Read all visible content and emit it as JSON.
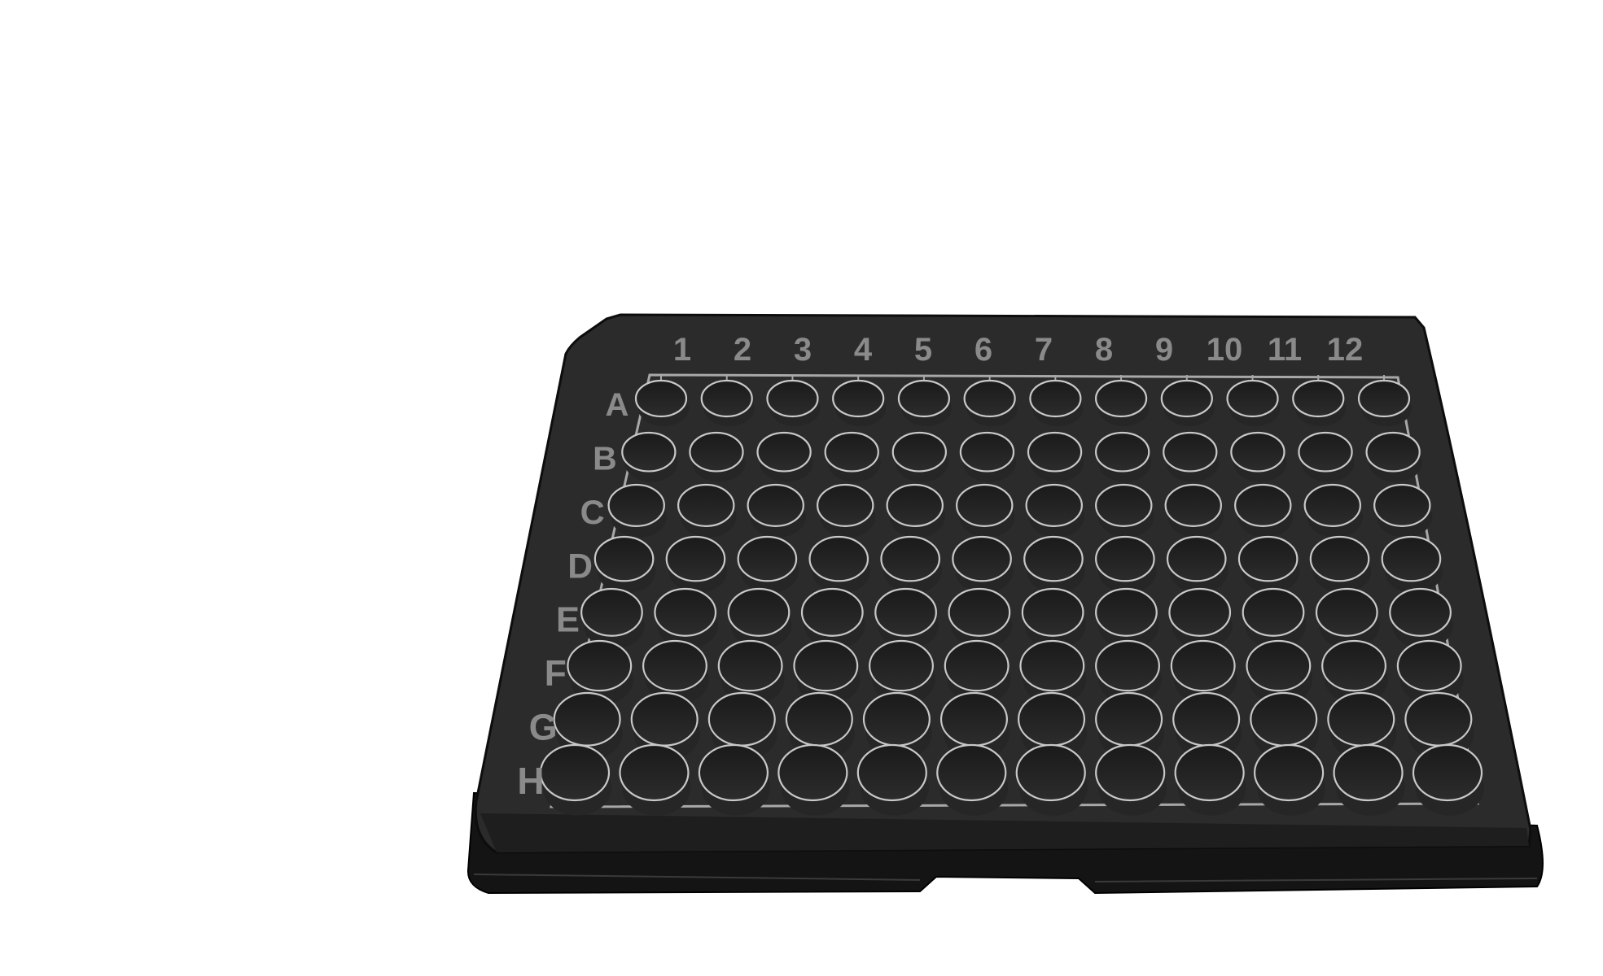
{
  "plate": {
    "column_labels": [
      "1",
      "2",
      "3",
      "4",
      "5",
      "6",
      "7",
      "8",
      "9",
      "10",
      "11",
      "12"
    ],
    "row_labels": [
      "A",
      "B",
      "C",
      "D",
      "E",
      "F",
      "G",
      "H"
    ],
    "colors": {
      "plate_top": "#2b2b2b",
      "plate_side": "#141414",
      "plate_edge": "#3c3c3c",
      "well_fill": "#222222",
      "well_rim": "#c8c8c8",
      "label_text": "#8a8a8a",
      "grid_line": "#a8a8a8"
    }
  }
}
